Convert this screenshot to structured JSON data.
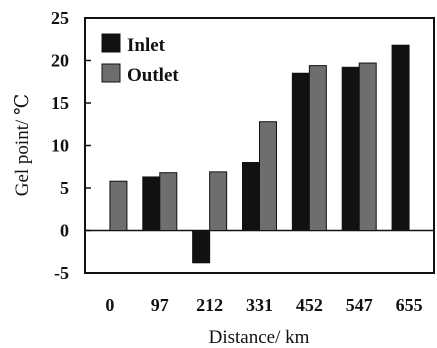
{
  "chart_data": {
    "type": "bar",
    "categories": [
      "0",
      "97",
      "212",
      "331",
      "452",
      "547",
      "655"
    ],
    "series": [
      {
        "name": "Inlet",
        "values": [
          null,
          6.3,
          -3.8,
          8.0,
          18.5,
          19.2,
          21.8
        ],
        "color": "#111111"
      },
      {
        "name": "Outlet",
        "values": [
          5.8,
          6.8,
          6.9,
          12.8,
          19.4,
          19.7,
          null
        ],
        "color": "#6e6e6e"
      }
    ],
    "title": "",
    "xlabel": "Distance/ km",
    "ylabel": "Gel point/ ℃",
    "ylim": [
      -5,
      25
    ],
    "yticks": [
      -5,
      0,
      5,
      10,
      15,
      20,
      25
    ],
    "grid": false,
    "legend_position": "top-left"
  }
}
